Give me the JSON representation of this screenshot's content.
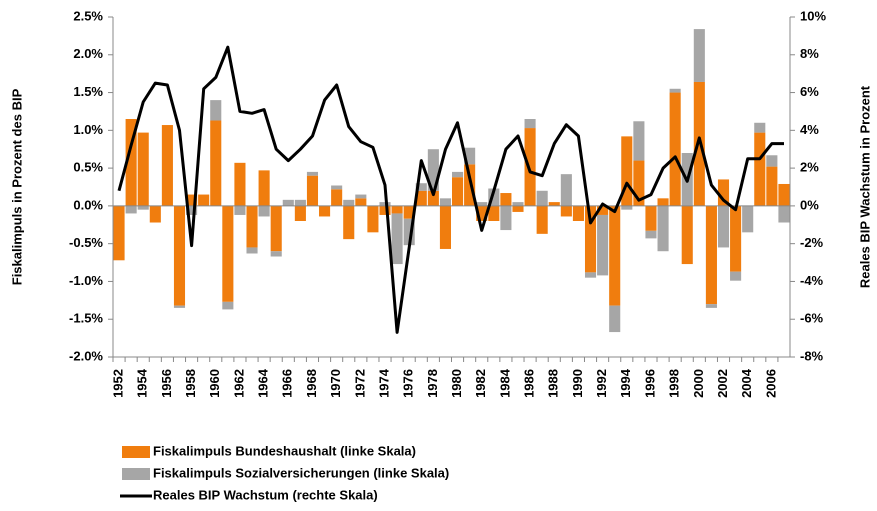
{
  "chart_data": {
    "type": "bar-line",
    "y_label": "Fiskalimpuls in Prozent des BIP",
    "y2_label": "Reales BIP Wachstum in Prozent",
    "categories": [
      "1952",
      null,
      "1954",
      null,
      "1956",
      null,
      "1958",
      null,
      "1960",
      null,
      "1962",
      null,
      "1964",
      null,
      "1966",
      null,
      "1968",
      null,
      "1970",
      null,
      "1972",
      null,
      "1974",
      null,
      "1976",
      null,
      "1978",
      null,
      "1980",
      null,
      "1982",
      null,
      "1984",
      null,
      "1986",
      null,
      "1988",
      null,
      "1990",
      null,
      "1992",
      null,
      "1994",
      null,
      "1996",
      null,
      "1998",
      null,
      "2000",
      null,
      "2002",
      null,
      "2004",
      null,
      "2006",
      null
    ],
    "ylim": [
      -2.0,
      2.5
    ],
    "yticks": [
      {
        "value": -2.0,
        "label": "-2.0%"
      },
      {
        "value": -1.5,
        "label": "-1.5%"
      },
      {
        "value": -1.0,
        "label": "-1.0%"
      },
      {
        "value": -0.5,
        "label": "-0.5%"
      },
      {
        "value": 0,
        "label": "0.0%"
      },
      {
        "value": 0.5,
        "label": "0.5%"
      },
      {
        "value": 1.0,
        "label": "1.0%"
      },
      {
        "value": 1.5,
        "label": "1.5%"
      },
      {
        "value": 2.0,
        "label": "2.0%"
      },
      {
        "value": 2.5,
        "label": "2.5%"
      }
    ],
    "y2lim": [
      -8,
      10
    ],
    "y2ticks": [
      {
        "value": -8,
        "label": "-8%"
      },
      {
        "value": -6,
        "label": "-6%"
      },
      {
        "value": -4,
        "label": "-4%"
      },
      {
        "value": -2,
        "label": "-2%"
      },
      {
        "value": 0,
        "label": "0%"
      },
      {
        "value": 2,
        "label": "2%"
      },
      {
        "value": 4,
        "label": "4%"
      },
      {
        "value": 6,
        "label": "6%"
      },
      {
        "value": 8,
        "label": "8%"
      },
      {
        "value": 10,
        "label": "10%"
      }
    ],
    "series": [
      {
        "name": "Fiskalimpuls Bundeshaushalt (linke Skala)",
        "type": "bar",
        "color": "#f07d0e",
        "values": [
          -0.72,
          1.15,
          0.97,
          -0.22,
          1.07,
          -1.32,
          0.15,
          0.15,
          1.13,
          -1.27,
          0.57,
          -0.55,
          0.47,
          -0.6,
          0.0,
          -0.2,
          0.4,
          -0.14,
          0.22,
          -0.44,
          0.1,
          -0.35,
          -0.12,
          -0.1,
          -0.17,
          0.2,
          0.2,
          -0.57,
          0.38,
          0.55,
          -0.2,
          -0.2,
          0.17,
          -0.08,
          1.03,
          -0.37,
          0.05,
          -0.14,
          -0.2,
          -0.88,
          -0.12,
          -1.32,
          0.92,
          0.6,
          -0.33,
          0.1,
          1.5,
          -0.77,
          1.64,
          -1.3,
          0.35,
          -0.87,
          0.0,
          0.97,
          0.52,
          0.29
        ]
      },
      {
        "name": "Fiskalimpuls Sozialversicherungen (linke Skala)",
        "type": "bar",
        "color": "#a6a6a6",
        "values": [
          0.0,
          -0.1,
          -0.05,
          0.0,
          0.0,
          -0.03,
          -0.12,
          0.0,
          0.27,
          -0.1,
          -0.12,
          -0.08,
          -0.14,
          -0.07,
          0.08,
          0.08,
          0.05,
          0.0,
          0.05,
          0.08,
          0.05,
          0.0,
          0.05,
          -0.67,
          -0.35,
          0.1,
          0.55,
          0.1,
          0.07,
          0.22,
          0.05,
          0.23,
          -0.32,
          0.05,
          0.12,
          0.2,
          0.0,
          0.42,
          0.0,
          -0.07,
          -0.8,
          -0.35,
          -0.05,
          0.52,
          -0.1,
          -0.6,
          0.05,
          0.7,
          0.7,
          -0.05,
          -0.55,
          -0.12,
          -0.35,
          0.13,
          0.15,
          -0.22
        ]
      },
      {
        "name": "Reales BIP Wachstum (rechte Skala)",
        "type": "line",
        "axis": "y2",
        "color": "#000000",
        "values": [
          0.8,
          3.2,
          5.5,
          6.5,
          6.4,
          4.0,
          -2.1,
          6.2,
          6.8,
          8.4,
          5.0,
          4.9,
          5.1,
          3.0,
          2.4,
          3.0,
          3.7,
          5.6,
          6.4,
          4.2,
          3.4,
          3.1,
          1.1,
          -6.7,
          -2.2,
          2.4,
          0.6,
          3.0,
          4.4,
          1.5,
          -1.3,
          0.8,
          3.0,
          3.7,
          1.8,
          1.6,
          3.3,
          4.3,
          3.7,
          -0.9,
          0.1,
          -0.3,
          1.2,
          0.3,
          0.6,
          2.0,
          2.6,
          1.3,
          3.6,
          1.1,
          0.3,
          -0.2,
          2.5,
          2.5,
          3.3,
          3.3
        ]
      }
    ]
  }
}
